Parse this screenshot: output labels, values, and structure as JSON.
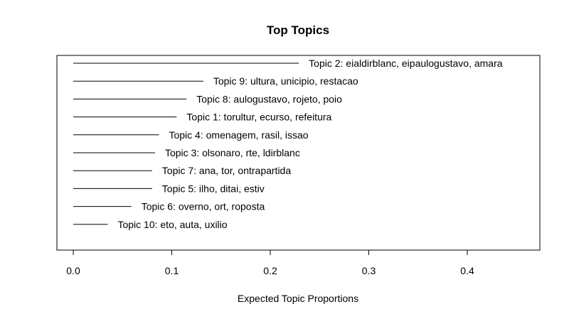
{
  "chart_data": {
    "type": "bar",
    "title": "Top Topics",
    "xlabel": "Expected Topic Proportions",
    "ylabel": "",
    "xlim": [
      0.0,
      0.47
    ],
    "x_ticks": [
      "0.0",
      "0.1",
      "0.2",
      "0.3",
      "0.4"
    ],
    "x_tick_values": [
      0.0,
      0.1,
      0.2,
      0.3,
      0.4
    ],
    "grid": false,
    "orientation": "horizontal",
    "categories": [
      "Topic 2: eialdirblanc, eipaulogustavo, amara",
      "Topic 9: ultura, unicipio, restacao",
      "Topic 8: aulogustavo, rojeto, poio",
      "Topic 1: torultur, ecurso, refeitura",
      "Topic 4: omenagem, rasil, issao",
      "Topic 3: olsonaro, rte, ldirblanc",
      "Topic 7: ana, tor, ontrapartida",
      "Topic 5: ilho, ditai, estiv",
      "Topic 6: overno, ort, roposta",
      "Topic 10: eto, auta, uxilio"
    ],
    "values": [
      0.229,
      0.132,
      0.115,
      0.105,
      0.087,
      0.083,
      0.08,
      0.08,
      0.059,
      0.035
    ]
  }
}
